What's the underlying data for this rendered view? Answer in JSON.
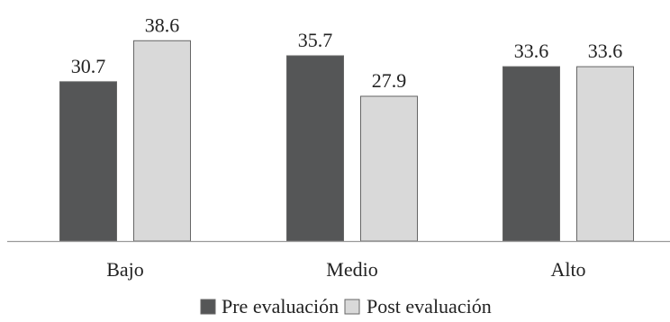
{
  "chart_data": {
    "type": "bar",
    "title": "",
    "xlabel": "",
    "ylabel": "",
    "categories": [
      "Bajo",
      "Medio",
      "Alto"
    ],
    "series": [
      {
        "name": "Pre evaluación",
        "values": [
          30.7,
          35.7,
          33.6
        ],
        "color": "#555657"
      },
      {
        "name": "Post evaluación",
        "values": [
          38.6,
          27.9,
          33.6
        ],
        "color": "#d9d9d9"
      }
    ],
    "value_labels": [
      [
        "30.7",
        "35.7",
        "33.6"
      ],
      [
        "38.6",
        "27.9",
        "33.6"
      ]
    ],
    "ylim": [
      0,
      40
    ],
    "grid": false,
    "legend_position": "bottom",
    "outline_color": "#666666",
    "axis_color": "#9a9a9a"
  }
}
